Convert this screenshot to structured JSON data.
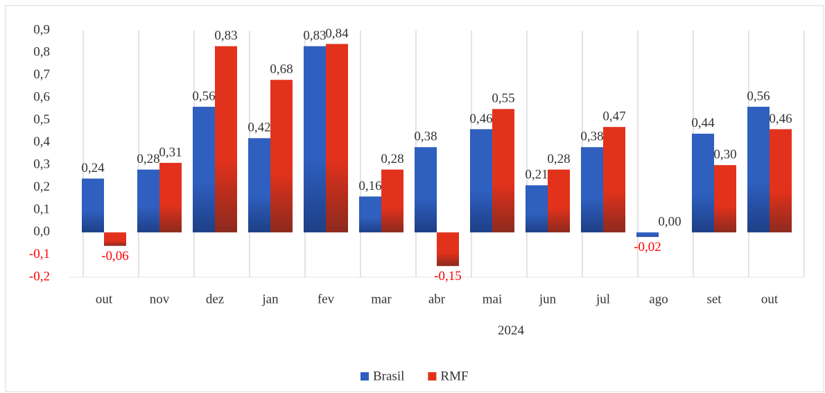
{
  "chart_data": {
    "type": "bar",
    "x_label": "2024",
    "categories": [
      "out",
      "nov",
      "dez",
      "jan",
      "fev",
      "mar",
      "abr",
      "mai",
      "jun",
      "jul",
      "ago",
      "set",
      "out"
    ],
    "series": [
      {
        "name": "Brasil",
        "color": "#2f5fbf",
        "values": [
          0.24,
          0.28,
          0.56,
          0.42,
          0.83,
          0.16,
          0.38,
          0.46,
          0.21,
          0.38,
          -0.02,
          0.44,
          0.56
        ],
        "value_labels": [
          "0,24",
          "0,28",
          "0,56",
          "0,42",
          "0,83",
          "0,16",
          "0,38",
          "0,46",
          "0,21",
          "0,38",
          "-0,02",
          "0,44",
          "0,56"
        ]
      },
      {
        "name": "RMF",
        "color": "#e3321c",
        "values": [
          -0.06,
          0.31,
          0.83,
          0.68,
          0.84,
          0.28,
          -0.15,
          0.55,
          0.28,
          0.47,
          0.0,
          0.3,
          0.46
        ],
        "value_labels": [
          "-0,06",
          "0,31",
          "0,83",
          "0,68",
          "0,84",
          "0,28",
          "-0,15",
          "0,55",
          "0,28",
          "0,47",
          "0,00",
          "0,30",
          "0,46"
        ]
      }
    ],
    "ylim": [
      -0.2,
      0.9
    ],
    "yticks": [
      {
        "value": -0.2,
        "label": "-0,2"
      },
      {
        "value": -0.1,
        "label": "-0,1"
      },
      {
        "value": 0.0,
        "label": "0,0"
      },
      {
        "value": 0.1,
        "label": "0,1"
      },
      {
        "value": 0.2,
        "label": "0,2"
      },
      {
        "value": 0.3,
        "label": "0,3"
      },
      {
        "value": 0.4,
        "label": "0,4"
      },
      {
        "value": 0.5,
        "label": "0,5"
      },
      {
        "value": 0.6,
        "label": "0,6"
      },
      {
        "value": 0.7,
        "label": "0,7"
      },
      {
        "value": 0.8,
        "label": "0,8"
      },
      {
        "value": 0.9,
        "label": "0,9"
      }
    ],
    "negative_color": "#ff0000",
    "legend": "bottom"
  }
}
